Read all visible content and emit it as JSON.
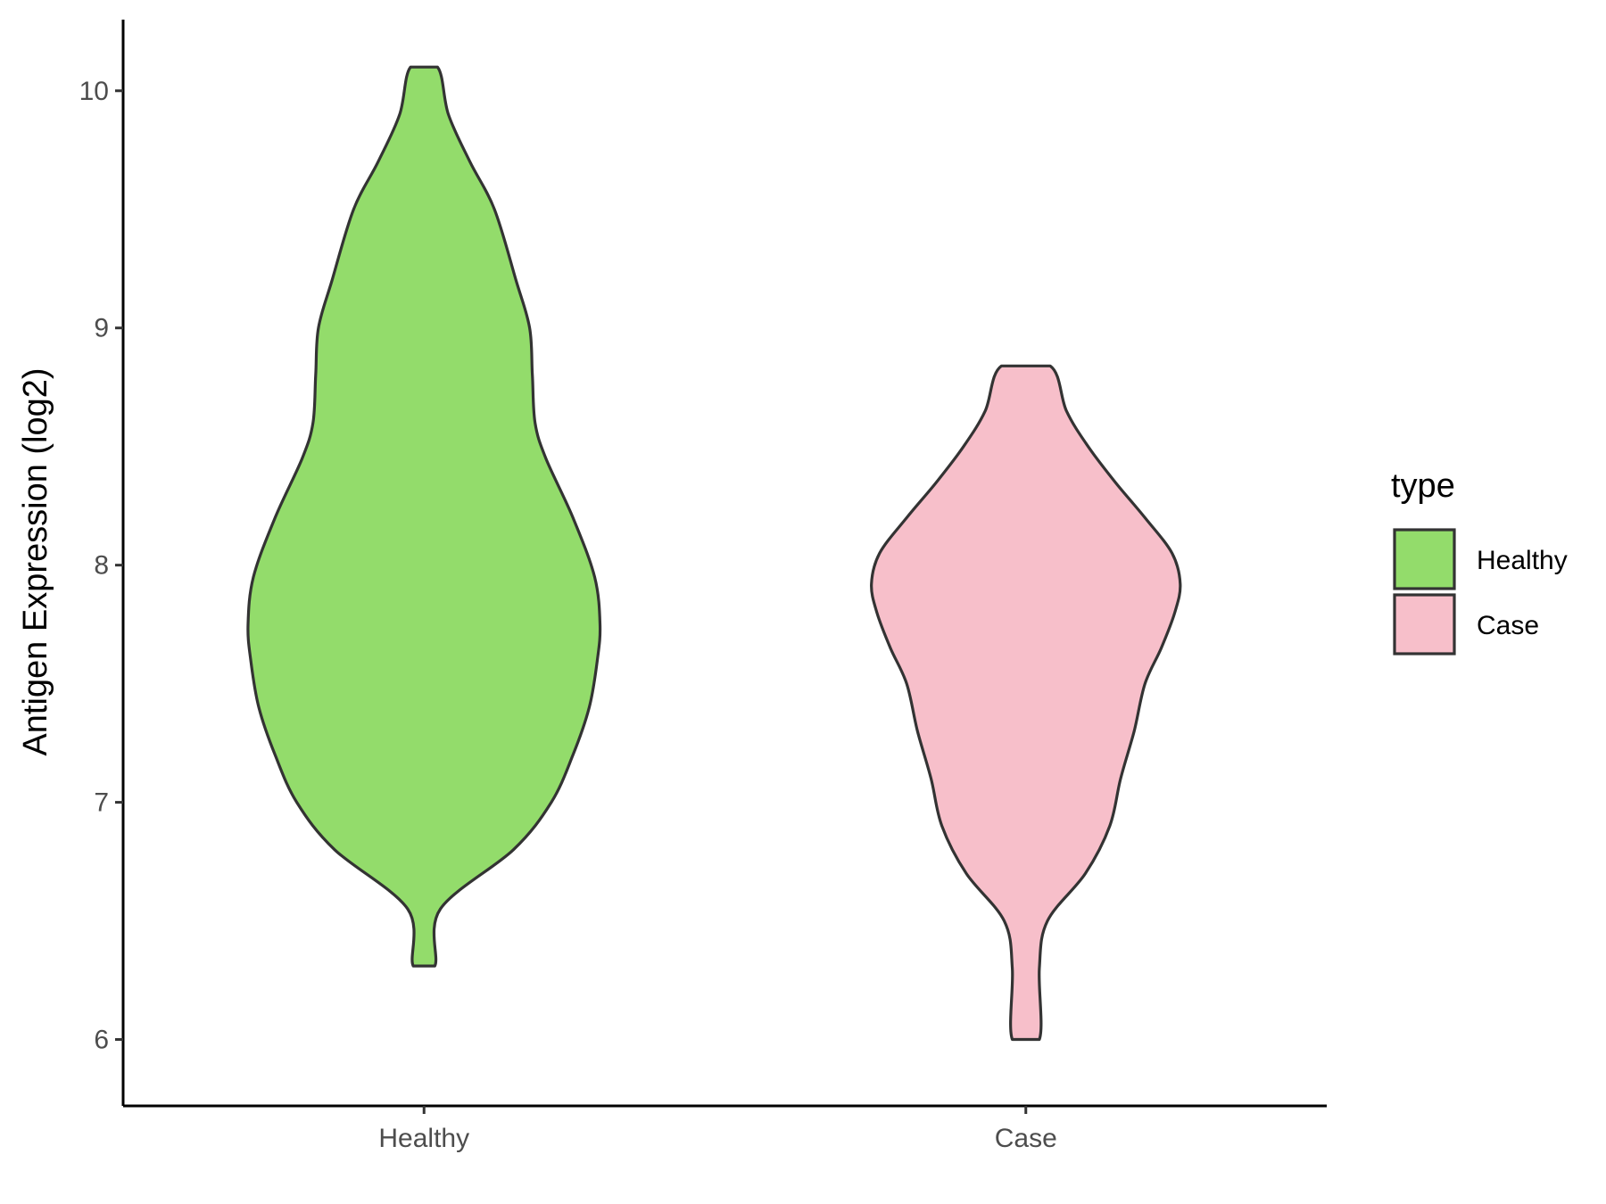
{
  "chart_data": {
    "type": "violin",
    "title": "",
    "xlabel": "",
    "ylabel": "Antigen Expression (log2)",
    "ylim": [
      5.72,
      10.3
    ],
    "y_ticks": [
      6,
      7,
      8,
      9,
      10
    ],
    "categories": [
      "Healthy",
      "Case"
    ],
    "grid": false,
    "legend": {
      "title": "type",
      "placement": "right",
      "entries": [
        {
          "label": "Healthy",
          "color": "#93dc6b"
        },
        {
          "label": "Case",
          "color": "#f7bfca"
        }
      ]
    },
    "series": [
      {
        "name": "Healthy",
        "color": "#93dc6b",
        "y_min": 6.31,
        "y_max": 10.1,
        "density_profile": [
          [
            6.31,
            0.04
          ],
          [
            6.55,
            0.06
          ],
          [
            6.8,
            0.33
          ],
          [
            7.0,
            0.47
          ],
          [
            7.2,
            0.55
          ],
          [
            7.4,
            0.61
          ],
          [
            7.6,
            0.64
          ],
          [
            7.75,
            0.65
          ],
          [
            7.95,
            0.63
          ],
          [
            8.2,
            0.55
          ],
          [
            8.45,
            0.45
          ],
          [
            8.6,
            0.41
          ],
          [
            8.8,
            0.4
          ],
          [
            9.0,
            0.39
          ],
          [
            9.2,
            0.34
          ],
          [
            9.5,
            0.26
          ],
          [
            9.7,
            0.17
          ],
          [
            9.9,
            0.09
          ],
          [
            10.1,
            0.05
          ]
        ]
      },
      {
        "name": "Case",
        "color": "#f7bfca",
        "y_min": 6.0,
        "y_max": 8.84,
        "density_profile": [
          [
            6.0,
            0.05
          ],
          [
            6.3,
            0.05
          ],
          [
            6.5,
            0.08
          ],
          [
            6.7,
            0.22
          ],
          [
            6.9,
            0.31
          ],
          [
            7.1,
            0.35
          ],
          [
            7.3,
            0.4
          ],
          [
            7.5,
            0.44
          ],
          [
            7.65,
            0.5
          ],
          [
            7.8,
            0.55
          ],
          [
            7.92,
            0.57
          ],
          [
            8.05,
            0.54
          ],
          [
            8.2,
            0.44
          ],
          [
            8.35,
            0.33
          ],
          [
            8.5,
            0.23
          ],
          [
            8.65,
            0.15
          ],
          [
            8.84,
            0.09
          ]
        ]
      }
    ]
  }
}
